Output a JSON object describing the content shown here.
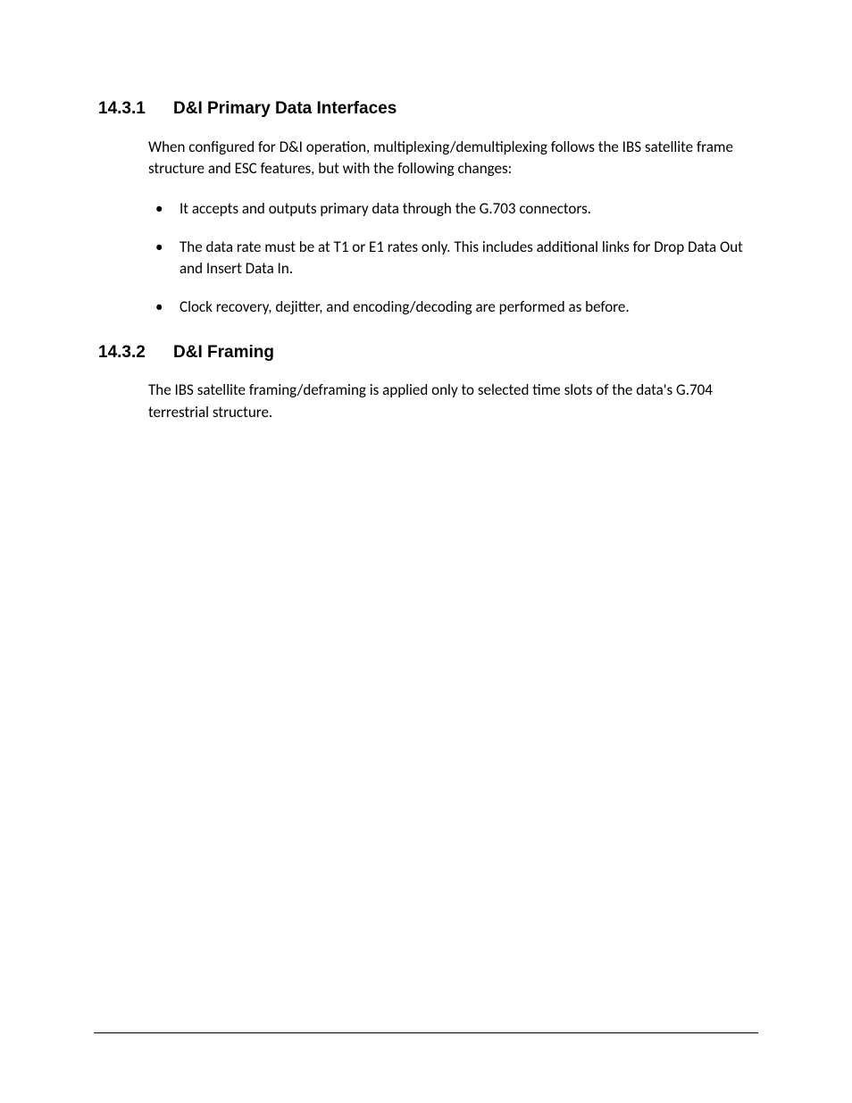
{
  "sections": [
    {
      "number": "14.3.1",
      "title": "D&I Primary Data Interfaces",
      "intro": "When configured for D&I operation, multiplexing/demultiplexing follows the IBS satellite frame structure and ESC features, but with the following changes:",
      "bullets": [
        "It accepts and outputs primary data through the G.703 connectors.",
        "The data rate must be at T1 or E1 rates only. This includes additional links for Drop Data Out and Insert Data In.",
        "Clock recovery, dejitter, and encoding/decoding are performed as before."
      ]
    },
    {
      "number": "14.3.2",
      "title": "D&I Framing",
      "intro": "The IBS satellite framing/deframing is applied only to selected time slots of the data's G.704 terrestrial structure."
    }
  ]
}
